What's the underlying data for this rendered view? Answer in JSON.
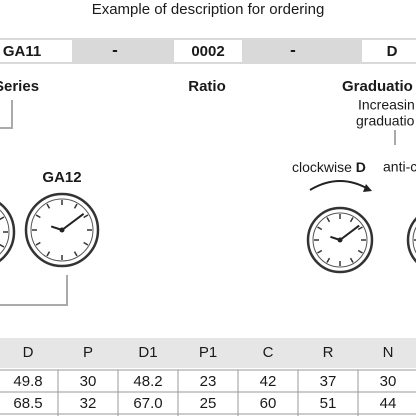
{
  "title": "Example of description for ordering",
  "code": {
    "series": "GA11",
    "sep1": "-",
    "ratio": "0002",
    "sep2": "-",
    "graduation": "D"
  },
  "labels": {
    "series": "Series",
    "ratio": "Ratio",
    "graduation": "Graduatio",
    "note": [
      "Increasin",
      "graduatio"
    ]
  },
  "gauge_label": "GA12",
  "directions": {
    "clockwise": "clockwise",
    "clockwise_code": "D",
    "anti": "anti-cl"
  },
  "table": {
    "header": [
      "D",
      "P",
      "D1",
      "P1",
      "C",
      "R",
      "N"
    ],
    "rows": [
      [
        "49.8",
        "30",
        "48.2",
        "23",
        "42",
        "37",
        "30"
      ],
      [
        "68.5",
        "32",
        "67.0",
        "25",
        "60",
        "51",
        "44"
      ]
    ]
  }
}
